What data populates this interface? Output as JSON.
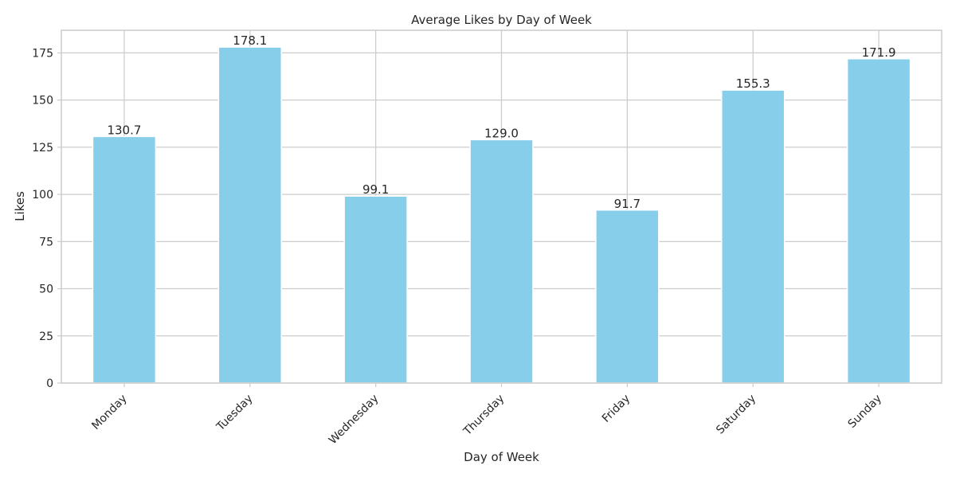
{
  "chart_data": {
    "type": "bar",
    "title": "Average Likes by Day of Week",
    "xlabel": "Day of Week",
    "ylabel": "Likes",
    "categories": [
      "Monday",
      "Tuesday",
      "Wednesday",
      "Thursday",
      "Friday",
      "Saturday",
      "Sunday"
    ],
    "values": [
      130.7,
      178.1,
      99.1,
      129.0,
      91.7,
      155.3,
      171.9
    ],
    "data_labels": [
      "130.7",
      "178.1",
      "99.1",
      "129.0",
      "91.7",
      "155.3",
      "171.9"
    ],
    "ylim": [
      0,
      187
    ],
    "yticks": [
      0,
      25,
      50,
      75,
      100,
      125,
      150,
      175
    ],
    "ytick_labels": [
      "0",
      "25",
      "50",
      "75",
      "100",
      "125",
      "150",
      "175"
    ],
    "grid": true,
    "bar_color": "#87ceeb",
    "grid_color": "#cccccc",
    "axis_color": "#cccccc",
    "text_color": "#262626"
  }
}
